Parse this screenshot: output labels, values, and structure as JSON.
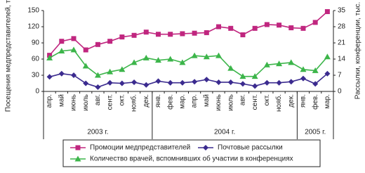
{
  "chart_data": {
    "type": "line",
    "ylabel": "Посещения медпредставителей, тыс.",
    "y2label": "Рассылки, конференции, тыс.",
    "groups": [
      {
        "label": "2003 г.",
        "categories": [
          "апр.",
          "май",
          "июнь",
          "июль",
          "авг.",
          "сент.",
          "окт.",
          "нояб.",
          "дек."
        ]
      },
      {
        "label": "2004 г.",
        "categories": [
          "янв.",
          "фев.",
          "мар.",
          "апр.",
          "май",
          "июнь",
          "июль",
          "авг.",
          "сент.",
          "окт.",
          "нояб.",
          "дек."
        ]
      },
      {
        "label": "2005 г.",
        "categories": [
          "янв.",
          "фев.",
          "мар."
        ]
      }
    ],
    "ylim": [
      0,
      150
    ],
    "yticks": [
      0,
      30,
      60,
      90,
      120,
      150
    ],
    "y2lim": [
      0,
      35
    ],
    "y2ticks": [
      0,
      7,
      14,
      21,
      28,
      35
    ],
    "series": [
      {
        "name": "Промоции медпредставителей",
        "color": "#c0267f",
        "marker": "square",
        "values": [
          67,
          93,
          98,
          77,
          87,
          93,
          101,
          104,
          110,
          106,
          106,
          107,
          108,
          109,
          120,
          117,
          105,
          117,
          124,
          123,
          118,
          117,
          128,
          148
        ]
      },
      {
        "name": "Почтовые рассылки",
        "color": "#3b2b8f",
        "marker": "diamond",
        "values": [
          27,
          33,
          30,
          15,
          8,
          16,
          15,
          17,
          12,
          19,
          16,
          16,
          18,
          22,
          17,
          17,
          14,
          10,
          16,
          16,
          18,
          24,
          14,
          33
        ]
      },
      {
        "name": "Количество врачей, вспомнивших об участии в конференциях",
        "color": "#3cb54a",
        "marker": "triangle",
        "axis": "y2",
        "values": [
          14.5,
          17.5,
          18,
          11,
          7,
          8.5,
          9.5,
          12.5,
          14.5,
          13.5,
          14,
          12.5,
          15.5,
          15,
          15.5,
          10,
          6.5,
          6.5,
          11.5,
          12,
          12.5,
          9.5,
          9,
          15
        ]
      }
    ]
  }
}
